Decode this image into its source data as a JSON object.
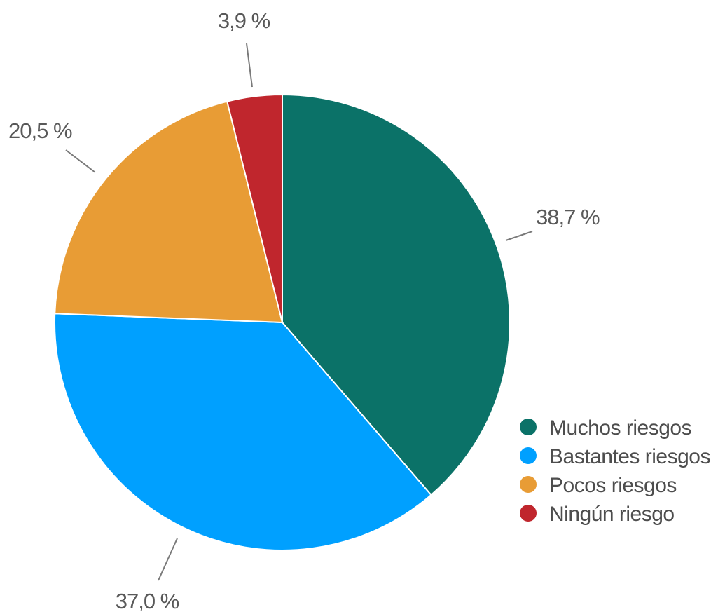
{
  "chart_data": {
    "type": "pie",
    "title": "",
    "slices": [
      {
        "label": "Muchos riesgos",
        "value": 38.7,
        "value_label": "38,7 %",
        "color": "#0b7268"
      },
      {
        "label": "Bastantes riesgos",
        "value": 37.0,
        "value_label": "37,0 %",
        "color": "#00a0ff"
      },
      {
        "label": "Pocos riesgos",
        "value": 20.5,
        "value_label": "20,5 %",
        "color": "#e89c35"
      },
      {
        "label": "Ningún riesgo",
        "value": 3.9,
        "value_label": "3,9 %",
        "color": "#c0262d"
      }
    ],
    "start_angle": "12 o'clock",
    "direction": "clockwise",
    "legend_position": "bottom-right",
    "slice_border_color": "#ffffff"
  }
}
